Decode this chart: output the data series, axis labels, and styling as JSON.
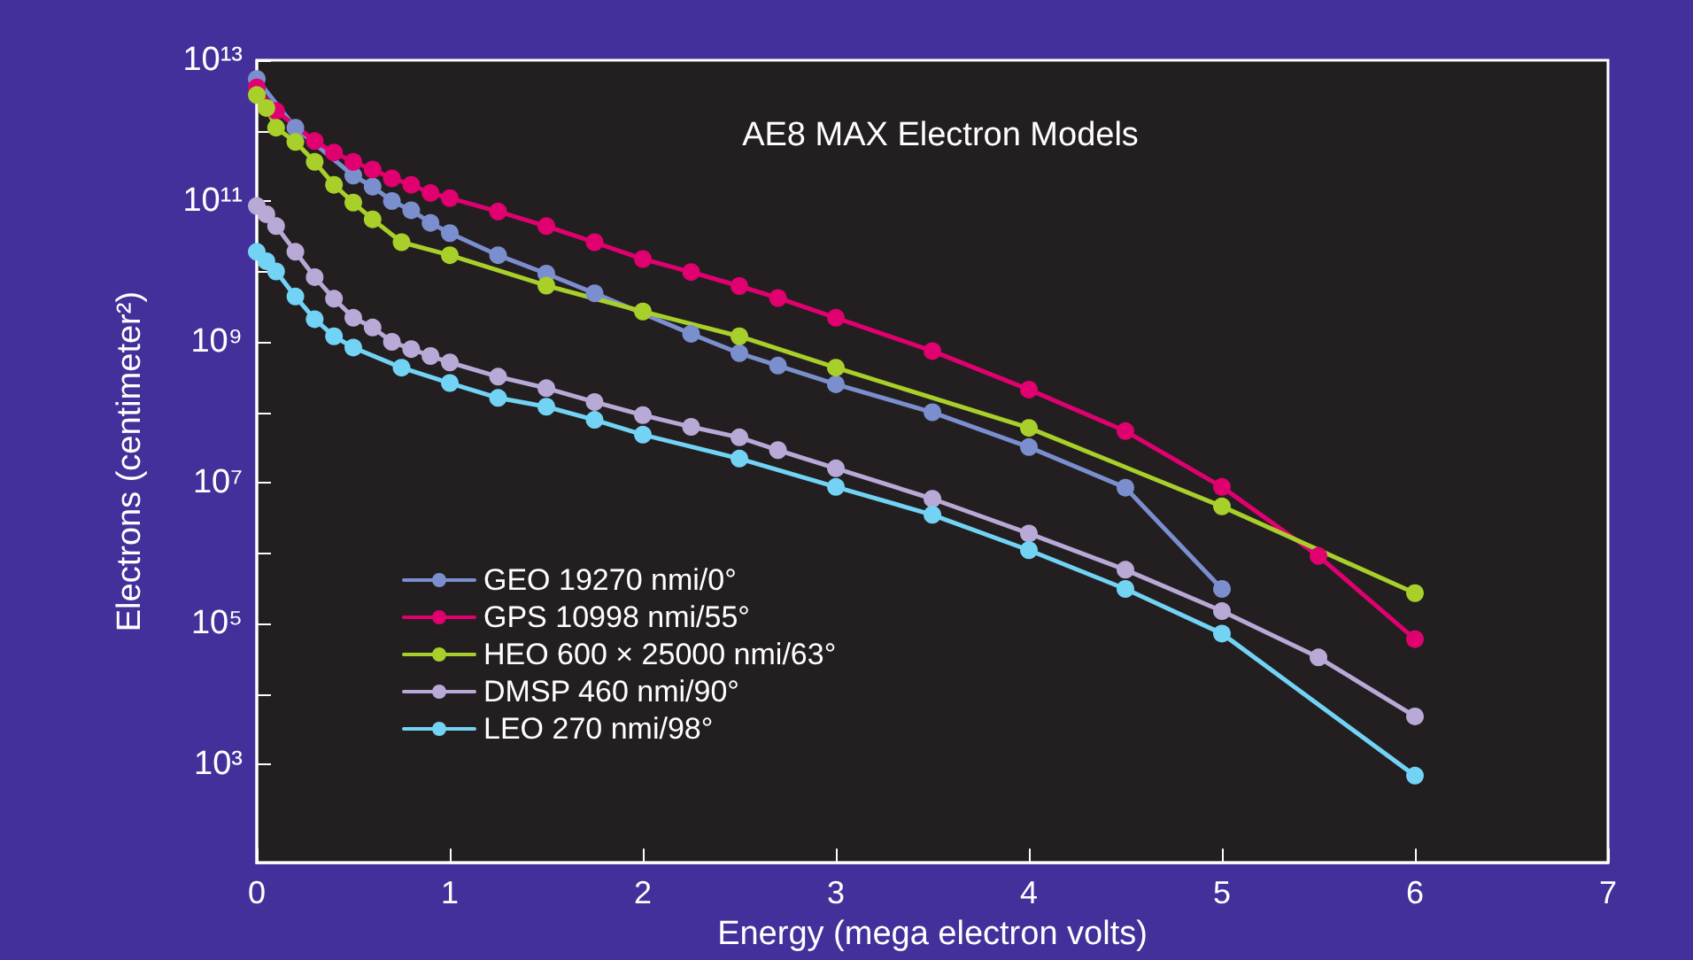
{
  "chart_data": {
    "type": "line",
    "title": "AE8 MAX Electron Models",
    "xlabel": "Energy (mega electron volts)",
    "ylabel": "Electrons (centimeter²)",
    "log": "y",
    "grid": false,
    "legend": "bottom left",
    "marker": "circle",
    "line_style": "solid",
    "xlim": [
      0,
      7
    ],
    "xticks": [
      0,
      1,
      2,
      3,
      4,
      5,
      6,
      7
    ],
    "ylim": [
      40,
      10000000000000.0
    ],
    "yticks": [
      {
        "value": 1000.0,
        "label": "10³"
      },
      {
        "value": 10000.0,
        "label": null
      },
      {
        "value": 100000.0,
        "label": "10⁵"
      },
      {
        "value": 1000000.0,
        "label": null
      },
      {
        "value": 10000000.0,
        "label": "10⁷"
      },
      {
        "value": 100000000.0,
        "label": null
      },
      {
        "value": 1000000000.0,
        "label": "10⁹"
      },
      {
        "value": 10000000000.0,
        "label": null
      },
      {
        "value": 100000000000.0,
        "label": "10¹¹"
      },
      {
        "value": 1000000000000.0,
        "label": null
      },
      {
        "value": 10000000000000.0,
        "label": "10¹³"
      }
    ],
    "series": [
      {
        "name": "GEO 19270 nmi/0°",
        "color": "#7b8fcf",
        "x": [
          0,
          0.2,
          0.4,
          0.5,
          0.6,
          0.7,
          0.8,
          0.9,
          1,
          1.25,
          1.5,
          1.75,
          2,
          2.25,
          2.5,
          2.7,
          3,
          3.5,
          4,
          4.5,
          5
        ],
        "values": [
          5400000000000.0,
          1100000000000.0,
          null,
          230000000000.0,
          160000000000.0,
          100000000000.0,
          74000000000.0,
          49000000000.0,
          35000000000.0,
          17000000000.0,
          9300000000.0,
          4900000000.0,
          null,
          1300000000.0,
          690000000.0,
          460000000.0,
          250000000.0,
          100000000.0,
          32000000.0,
          8500000.0,
          310000.0
        ]
      },
      {
        "name": "GPS 10998 nmi/55°",
        "color": "#e0006f",
        "x": [
          0,
          0.1,
          0.3,
          0.4,
          0.5,
          0.6,
          0.7,
          0.8,
          0.9,
          1,
          1.25,
          1.5,
          1.75,
          2,
          2.25,
          2.5,
          2.7,
          3,
          3.5,
          4,
          4.5,
          5,
          5.5,
          6
        ],
        "values": [
          4100000000000.0,
          1900000000000.0,
          710000000000.0,
          490000000000.0,
          360000000000.0,
          280000000000.0,
          210000000000.0,
          170000000000.0,
          130000000000.0,
          110000000000.0,
          71000000000.0,
          44000000000.0,
          26000000000.0,
          15000000000.0,
          9800000000.0,
          6200000000.0,
          4200000000.0,
          2200000000.0,
          740000000.0,
          210000000.0,
          54000000.0,
          8700000.0,
          910000.0,
          60000.0
        ]
      },
      {
        "name": "HEO 600 × 25000 nmi/63°",
        "color": "#a8cf2a",
        "x": [
          0,
          0.05,
          0.1,
          0.2,
          0.3,
          0.4,
          0.5,
          0.6,
          0.75,
          1,
          1.5,
          2,
          2.5,
          3,
          4,
          5,
          6
        ],
        "values": [
          3200000000000.0,
          2100000000000.0,
          1100000000000.0,
          690000000000.0,
          360000000000.0,
          170000000000.0,
          95000000000.0,
          55000000000.0,
          26000000000.0,
          17000000000.0,
          6300000000.0,
          2700000000.0,
          1200000000.0,
          430000000.0,
          60000000.0,
          4600000.0,
          270000.0
        ]
      },
      {
        "name": "DMSP 460 nmi/90°",
        "color": "#b9a9d6",
        "x": [
          0,
          0.05,
          0.1,
          0.2,
          0.3,
          0.4,
          0.5,
          0.6,
          0.7,
          0.8,
          0.9,
          1,
          1.25,
          1.5,
          1.75,
          2,
          2.25,
          2.5,
          2.7,
          3,
          3.5,
          4,
          4.5,
          5,
          5.5,
          6
        ],
        "values": [
          85000000000.0,
          65000000000.0,
          44000000000.0,
          19000000000.0,
          8300000000.0,
          4100000000.0,
          2200000000.0,
          1600000000.0,
          1000000000.0,
          790000000.0,
          630000000.0,
          510000000.0,
          320000000.0,
          220000000.0,
          140000000.0,
          91000000.0,
          62000000.0,
          44000000.0,
          29000000.0,
          16000000.0,
          5900000.0,
          1900000.0,
          580000.0,
          150000.0,
          33000.0,
          4800.0
        ]
      },
      {
        "name": "LEO 270 nmi/98°",
        "color": "#72d3f5",
        "x": [
          0,
          0.05,
          0.1,
          0.2,
          0.3,
          0.4,
          0.5,
          0.75,
          1,
          1.25,
          1.5,
          1.75,
          2,
          2.5,
          3,
          3.5,
          4,
          4.5,
          5,
          6
        ],
        "values": [
          19000000000.0,
          14000000000.0,
          10000000000.0,
          4400000000.0,
          2100000000.0,
          1200000000.0,
          830000000.0,
          430000000.0,
          260000000.0,
          160000000.0,
          120000000.0,
          78000000.0,
          48000000.0,
          22000000.0,
          8700000.0,
          3500000.0,
          1100000.0,
          310000.0,
          72000.0,
          690.0
        ]
      }
    ]
  }
}
